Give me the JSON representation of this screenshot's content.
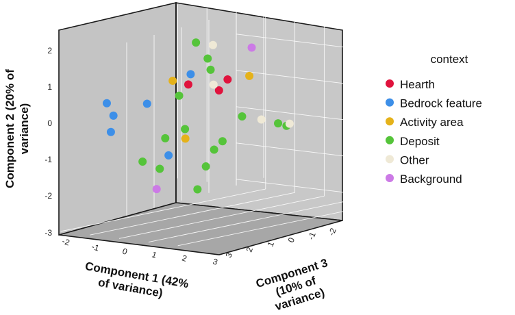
{
  "chart_data": {
    "type": "scatter",
    "projection": "3d",
    "xlabel_lines": [
      "Component 1 (42%",
      "of variance)"
    ],
    "ylabel_lines": [
      "Component 2 (20% of",
      "variance)"
    ],
    "zlabel_lines": [
      "Component 3",
      "(10% of",
      "variance)"
    ],
    "x_ticks": [
      "-2",
      "-1",
      "0",
      "1",
      "2",
      "3"
    ],
    "y_ticks": [
      "2",
      "1",
      "0",
      "-1",
      "-2",
      "-3"
    ],
    "z_ticks": [
      "3",
      "2",
      "1",
      "0",
      "-1",
      "-2"
    ],
    "legend_title": "context",
    "series": [
      {
        "name": "Hearth",
        "color": "#e0133d",
        "points": [
          [
            0.7,
            1.2,
            0.3
          ],
          [
            1.2,
            1.2,
            -0.6
          ],
          [
            1.0,
            0.9,
            -0.5
          ]
        ]
      },
      {
        "name": "Bedrock feature",
        "color": "#3d8fe8",
        "points": [
          [
            -1.8,
            0.5,
            0.6
          ],
          [
            -1.2,
            0.3,
            1.0
          ],
          [
            -0.8,
            0.5,
            0.2
          ],
          [
            -1.1,
            -0.1,
            1.2
          ],
          [
            0.5,
            1.4,
            0.0
          ],
          [
            0.4,
            -0.7,
            0.7
          ]
        ]
      },
      {
        "name": "Activity area",
        "color": "#e5b21a",
        "points": [
          [
            -0.3,
            1.1,
            -0.2
          ],
          [
            0.6,
            -0.3,
            0.3
          ],
          [
            1.1,
            1.1,
            -1.5
          ]
        ]
      },
      {
        "name": "Deposit",
        "color": "#55c43a",
        "points": [
          [
            0.4,
            2.2,
            -0.3
          ],
          [
            0.8,
            1.8,
            -0.3
          ],
          [
            0.9,
            1.5,
            -0.3
          ],
          [
            0.2,
            0.8,
            0.1
          ],
          [
            0.1,
            -0.3,
            0.5
          ],
          [
            0.4,
            -0.1,
            0.1
          ],
          [
            -0.3,
            -0.9,
            0.9
          ],
          [
            0.1,
            -1.1,
            0.7
          ],
          [
            1.4,
            -0.4,
            -0.2
          ],
          [
            1.3,
            -0.6,
            0.0
          ],
          [
            1.3,
            -1.0,
            0.3
          ],
          [
            1.6,
            0.2,
            -0.7
          ],
          [
            1.2,
            -1.6,
            0.5
          ],
          [
            1.8,
            -0.2,
            -1.8
          ],
          [
            1.9,
            -0.3,
            -2.0
          ]
        ]
      },
      {
        "name": "Other",
        "color": "#efe9d6",
        "points": [
          [
            0.7,
            2.1,
            -0.6
          ],
          [
            1.0,
            1.1,
            -0.3
          ],
          [
            1.7,
            0.0,
            -1.3
          ],
          [
            2.1,
            -0.2,
            -1.9
          ]
        ]
      },
      {
        "name": "Background",
        "color": "#cc7ae6",
        "points": [
          [
            0.9,
            1.8,
            -1.8
          ],
          [
            -0.1,
            -1.7,
            0.6
          ]
        ]
      }
    ]
  }
}
